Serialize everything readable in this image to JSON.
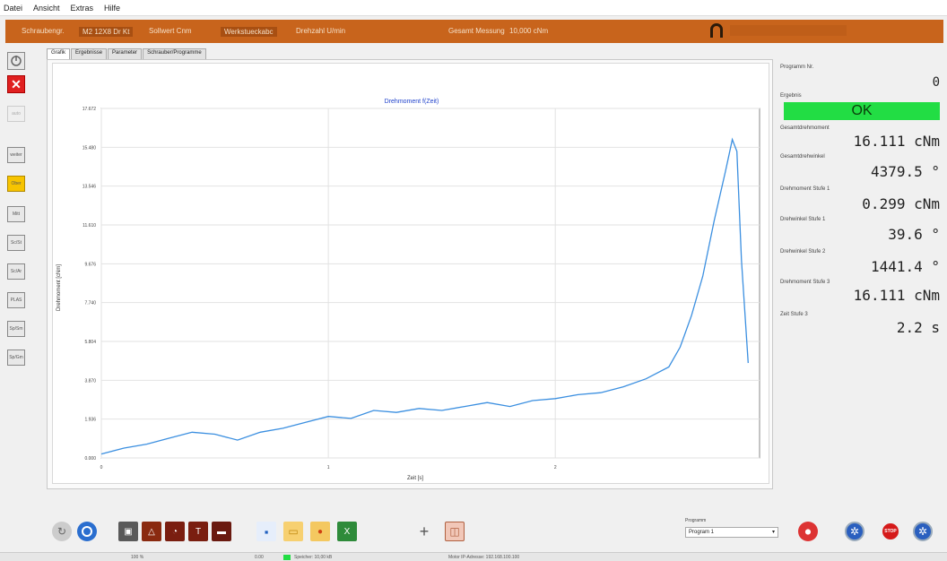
{
  "menu": [
    "Datei",
    "Ansicht",
    "Extras",
    "Hilfe"
  ],
  "infobar": {
    "f1": "Schraubengr.",
    "f2": "M2 12X8 Dr Kt",
    "f3": "Sollwert Cnm",
    "f4": "Werkstueckabc",
    "f5": "Drehzahl U/min",
    "f6": "Gesamt Messung",
    "f7": "10,000 cNm"
  },
  "left_toolbar": [
    "",
    "",
    "auto",
    "weiter",
    "Ober",
    "Mitt",
    "Sc/St",
    "Sc/Ar",
    "PLAS",
    "Sp/Sm",
    "Sp/Gm"
  ],
  "tabs": [
    "Grafik",
    "Ergebnisse",
    "Parameter",
    "Schrauber/Programme"
  ],
  "chart_data": {
    "type": "line",
    "title": "Drehmoment f(Zeit)",
    "xlabel": "Zeit [s]",
    "ylabel": "Drehmoment [cNm]",
    "xlim": [
      0,
      2.9
    ],
    "ylim": [
      0,
      17.672
    ],
    "x_ticks": [
      "0",
      "1",
      "2"
    ],
    "y_ticks": [
      "0.000",
      "1.936",
      "3.870",
      "5.804",
      "7.740",
      "9.676",
      "11.610",
      "13.546",
      "15.480",
      "17.672"
    ],
    "grid": true,
    "series": [
      {
        "x": [
          0,
          0.1,
          0.2,
          0.3,
          0.4,
          0.5,
          0.6,
          0.7,
          0.8,
          0.9,
          1.0,
          1.1,
          1.2,
          1.3,
          1.4,
          1.5,
          1.6,
          1.7,
          1.8,
          1.9,
          2.0,
          2.1,
          2.2,
          2.3,
          2.4,
          2.5,
          2.55,
          2.6,
          2.65,
          2.7,
          2.75,
          2.78,
          2.8,
          2.82,
          2.85
        ],
        "y": [
          0.2,
          0.5,
          0.7,
          1.0,
          1.3,
          1.2,
          0.9,
          1.3,
          1.5,
          1.8,
          2.1,
          2.0,
          2.4,
          2.3,
          2.5,
          2.4,
          2.6,
          2.8,
          2.6,
          2.9,
          3.0,
          3.2,
          3.3,
          3.6,
          4.0,
          4.6,
          5.6,
          7.2,
          9.2,
          12.0,
          14.5,
          16.1,
          15.5,
          10.0,
          4.8
        ]
      }
    ]
  },
  "right": {
    "prog_label": "Programm Nr.",
    "prog_value": "0",
    "result_label": "Ergebnis",
    "result_value": "OK",
    "l1": "Gesamtdrehmoment",
    "v1": "16.111 cNm",
    "l2": "Gesamtdrehwinkel",
    "v2": "4379.5 °",
    "l3": "Drehmoment Stufe 1",
    "v3": "0.299 cNm",
    "l4": "Drehwinkel Stufe 1",
    "v4": "39.6 °",
    "l5": "Drehwinkel Stufe 2",
    "v5": "1441.4 °",
    "l6": "Drehmoment Stufe 3",
    "v6": "16.111 cNm",
    "l7": "Zeit Stufe 3",
    "v7": "2.2 s"
  },
  "program_select": {
    "label": "Programm",
    "value": "Program 1"
  },
  "statusbar": [
    "100 %",
    "0.00",
    "Speicher: 10,00 kB",
    "Motor IP-Adresse: 192.168.100.100"
  ],
  "colors": {
    "accent": "#c8641c",
    "ok": "#22dd44",
    "line": "#3b8fe0"
  }
}
